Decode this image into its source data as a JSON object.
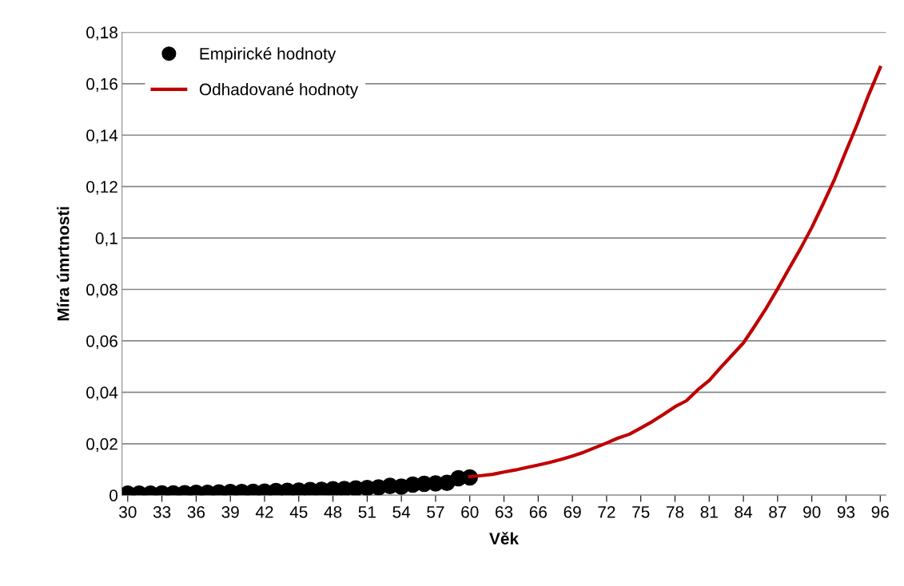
{
  "chart_data": {
    "type": "line",
    "xlabel": "Věk",
    "ylabel": "Míra úmrtnosti",
    "categories": [
      "30",
      null,
      null,
      "33",
      null,
      null,
      "36",
      null,
      null,
      "39",
      null,
      null,
      "42",
      null,
      null,
      "45",
      null,
      null,
      "48",
      null,
      null,
      "51",
      null,
      null,
      "54",
      null,
      null,
      "57",
      null,
      null,
      "60",
      null,
      null,
      "63",
      null,
      null,
      "66",
      null,
      null,
      "69",
      null,
      null,
      "72",
      null,
      null,
      "75",
      null,
      null,
      "78",
      null,
      null,
      "81",
      null,
      null,
      "84",
      null,
      null,
      "87",
      null,
      null,
      "90",
      null,
      null,
      "93",
      null,
      null,
      "96"
    ],
    "series": [
      {
        "name": "Empirické hodnoty",
        "type": "scatter",
        "marker": "circle",
        "color": "#000000",
        "values": [
          0.0006,
          0.0006,
          0.0006,
          0.0007,
          0.0007,
          0.0008,
          0.0009,
          0.0009,
          0.0011,
          0.0012,
          0.0012,
          0.0013,
          0.0014,
          0.0016,
          0.0017,
          0.0018,
          0.002,
          0.0021,
          0.0023,
          0.0024,
          0.0026,
          0.0028,
          0.003,
          0.0036,
          0.0033,
          0.0041,
          0.0044,
          0.0046,
          0.0048,
          0.0066,
          0.0069,
          null,
          null,
          null,
          null,
          null,
          null,
          null,
          null,
          null,
          null,
          null,
          null,
          null,
          null,
          null,
          null,
          null,
          null,
          null,
          null,
          null,
          null,
          null,
          null,
          null,
          null,
          null,
          null,
          null,
          null,
          null,
          null,
          null,
          null,
          null,
          null
        ]
      },
      {
        "name": "Odhadované hodnoty",
        "color": "#c00000",
        "values": [
          null,
          null,
          null,
          null,
          null,
          null,
          null,
          null,
          null,
          null,
          null,
          null,
          null,
          null,
          null,
          null,
          null,
          null,
          null,
          null,
          null,
          null,
          null,
          null,
          null,
          null,
          null,
          null,
          null,
          null,
          0.0072,
          0.0076,
          0.0081,
          0.009,
          0.0098,
          0.0108,
          0.0117,
          0.0127,
          0.0139,
          0.0152,
          0.0167,
          0.0185,
          0.0203,
          0.0222,
          0.0237,
          0.0261,
          0.0286,
          0.0314,
          0.0344,
          0.0367,
          0.041,
          0.0446,
          0.0496,
          0.0544,
          0.0592,
          0.0658,
          0.0727,
          0.0802,
          0.0881,
          0.0958,
          0.1041,
          0.1133,
          0.1229,
          0.1338,
          0.1444,
          0.1558,
          0.1663
        ]
      }
    ],
    "ylim": [
      0,
      0.18
    ],
    "yticks": [
      0,
      {
        "value": 0.02,
        "label": "0,02"
      },
      {
        "value": 0.04,
        "label": "0,04"
      },
      {
        "value": 0.06,
        "label": "0,06"
      },
      {
        "value": 0.08,
        "label": "0,08"
      },
      {
        "value": 0.1,
        "label": "0,1"
      },
      {
        "value": 0.12,
        "label": "0,12"
      },
      {
        "value": 0.14,
        "label": "0,14"
      },
      {
        "value": 0.16,
        "label": "0,16"
      },
      {
        "value": 0.18,
        "label": "0,18"
      }
    ],
    "grid": "y",
    "legend": "top left"
  }
}
